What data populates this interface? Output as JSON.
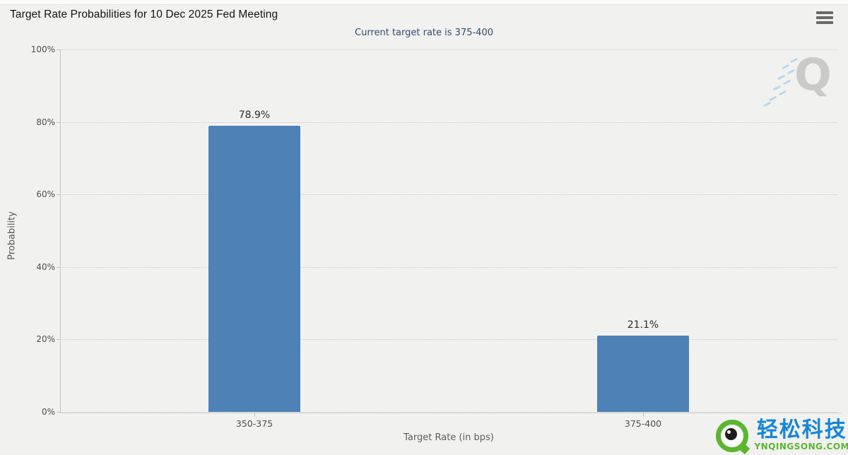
{
  "header": {
    "title": "Target Rate Probabilities for 10 Dec 2025 Fed Meeting"
  },
  "chart_data": {
    "type": "bar",
    "title": "Target Rate Probabilities for 10 Dec 2025 Fed Meeting",
    "subtitle": "Current target rate is 375-400",
    "categories": [
      "350-375",
      "375-400"
    ],
    "values": [
      78.9,
      21.1
    ],
    "value_labels": [
      "78.9%",
      "21.1%"
    ],
    "xlabel": "Target Rate (in bps)",
    "ylabel": "Probability",
    "ylim": [
      0,
      100
    ],
    "yticks": [
      0,
      20,
      40,
      60,
      80,
      100
    ],
    "ytick_labels": [
      "0%",
      "20%",
      "40%",
      "60%",
      "80%",
      "100%"
    ],
    "grid": "horizontal-dotted",
    "legend": "none",
    "bar_color": "#4e81b5"
  },
  "watermark": {
    "letter": "Q"
  },
  "branding": {
    "name_cn": "轻松科技",
    "domain": "YNQINGSONG.COM",
    "brand_blue": "#1586d8",
    "brand_green": "#5cb531"
  },
  "colors": {
    "background": "#f1f1ef",
    "bar": "#4e81b5",
    "subtitle": "#2f4d6e",
    "grid": "#cbcbc9"
  }
}
